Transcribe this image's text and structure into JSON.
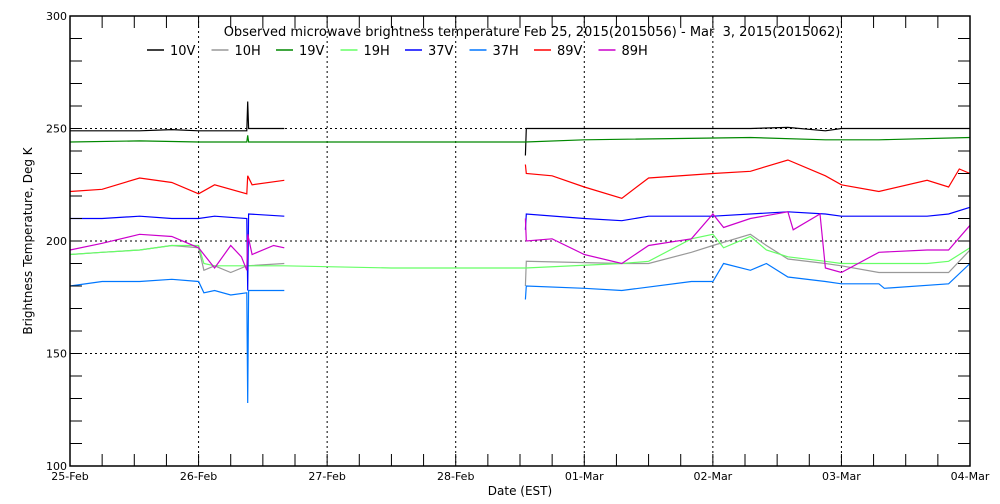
{
  "chart_data": {
    "type": "line",
    "title": "Observed microwave brightness temperature Feb 25, 2015(2015056) - Mar  3, 2015(2015062)",
    "xlabel": "Date (EST)",
    "ylabel": "Brightness Temperature, Deg K",
    "xlim": [
      "2015-02-25 00:00",
      "2015-03-04 00:00"
    ],
    "ylim": [
      100,
      300
    ],
    "x_tick_labels": [
      "25-Feb",
      "26-Feb",
      "27-Feb",
      "28-Feb",
      "01-Mar",
      "02-Mar",
      "03-Mar",
      "04-Mar"
    ],
    "y_tick_labels": [
      "100",
      "150",
      "200",
      "250",
      "300"
    ],
    "grid": "dotted",
    "legend": "top",
    "series": [
      {
        "name": "10V",
        "color": "#000000",
        "segments": [
          [
            [
              "2015-02-25 00:00",
              249
            ],
            [
              "2015-02-25 13:00",
              249
            ],
            [
              "2015-02-25 19:00",
              249.5
            ],
            [
              "2015-02-26 00:00",
              249
            ],
            [
              "2015-02-26 09:00",
              249
            ],
            [
              "2015-02-26 09:10",
              262
            ],
            [
              "2015-02-26 09:20",
              250
            ],
            [
              "2015-02-26 16:00",
              250
            ]
          ],
          [
            [
              "2015-02-28 13:00",
              238
            ],
            [
              "2015-02-28 13:10",
              250
            ],
            [
              "2015-03-01 00:00",
              250
            ],
            [
              "2015-03-02 07:00",
              250
            ],
            [
              "2015-03-02 14:00",
              250.5
            ],
            [
              "2015-03-02 21:00",
              249
            ],
            [
              "2015-03-03 00:00",
              250
            ],
            [
              "2015-03-04 00:00",
              250
            ]
          ]
        ]
      },
      {
        "name": "10H",
        "color": "#999999",
        "segments": [
          [
            [
              "2015-02-25 00:00",
              194
            ],
            [
              "2015-02-25 06:00",
              195
            ],
            [
              "2015-02-25 13:00",
              196
            ],
            [
              "2015-02-25 19:00",
              198
            ],
            [
              "2015-02-26 00:00",
              197
            ],
            [
              "2015-02-26 01:00",
              187
            ],
            [
              "2015-02-26 03:00",
              189
            ],
            [
              "2015-02-26 06:00",
              186
            ],
            [
              "2015-02-26 09:00",
              189
            ],
            [
              "2015-02-26 16:00",
              190
            ]
          ],
          [
            [
              "2015-02-28 13:00",
              180
            ],
            [
              "2015-02-28 13:10",
              191
            ],
            [
              "2015-03-01 07:00",
              190
            ],
            [
              "2015-03-01 12:00",
              190
            ],
            [
              "2015-03-01 20:00",
              195
            ],
            [
              "2015-03-02 00:00",
              198
            ],
            [
              "2015-03-02 07:00",
              203
            ],
            [
              "2015-03-02 10:00",
              198
            ],
            [
              "2015-03-02 14:00",
              192
            ],
            [
              "2015-03-02 21:00",
              190
            ],
            [
              "2015-03-03 00:00",
              189
            ],
            [
              "2015-03-03 07:00",
              186
            ],
            [
              "2015-03-03 20:00",
              186
            ],
            [
              "2015-03-04 00:00",
              196
            ]
          ]
        ]
      },
      {
        "name": "19V",
        "color": "#008800",
        "segments": [
          [
            [
              "2015-02-25 00:00",
              244
            ],
            [
              "2015-02-25 13:00",
              244.5
            ],
            [
              "2015-02-26 00:00",
              244
            ],
            [
              "2015-02-26 09:00",
              244
            ],
            [
              "2015-02-26 09:10",
              247
            ],
            [
              "2015-02-26 09:20",
              244
            ],
            [
              "2015-02-28 13:00",
              244
            ],
            [
              "2015-03-01 00:00",
              245
            ],
            [
              "2015-03-02 07:00",
              246
            ],
            [
              "2015-03-02 21:00",
              245
            ],
            [
              "2015-03-03 07:00",
              245
            ],
            [
              "2015-03-04 00:00",
              246
            ]
          ]
        ]
      },
      {
        "name": "19H",
        "color": "#66ff66",
        "segments": [
          [
            [
              "2015-02-25 00:00",
              194
            ],
            [
              "2015-02-25 06:00",
              195
            ],
            [
              "2015-02-25 13:00",
              196
            ],
            [
              "2015-02-25 19:00",
              198
            ],
            [
              "2015-02-26 00:00",
              198
            ],
            [
              "2015-02-26 01:00",
              190
            ],
            [
              "2015-02-26 03:00",
              189
            ],
            [
              "2015-02-26 16:00",
              189
            ],
            [
              "2015-02-27 12:00",
              188
            ],
            [
              "2015-02-28 13:00",
              188
            ],
            [
              "2015-03-01 07:00",
              190
            ],
            [
              "2015-03-01 12:00",
              191
            ],
            [
              "2015-03-01 20:00",
              201
            ],
            [
              "2015-03-02 00:00",
              203
            ],
            [
              "2015-03-02 02:00",
              197
            ],
            [
              "2015-03-02 07:00",
              202
            ],
            [
              "2015-03-02 10:00",
              196
            ],
            [
              "2015-03-02 14:00",
              193
            ],
            [
              "2015-03-02 21:00",
              191
            ],
            [
              "2015-03-03 00:00",
              190
            ],
            [
              "2015-03-03 16:00",
              190
            ],
            [
              "2015-03-03 20:00",
              191
            ],
            [
              "2015-03-04 00:00",
              197
            ]
          ]
        ]
      },
      {
        "name": "37V",
        "color": "#0000ff",
        "segments": [
          [
            [
              "2015-02-25 00:00",
              210
            ],
            [
              "2015-02-25 06:00",
              210
            ],
            [
              "2015-02-25 13:00",
              211
            ],
            [
              "2015-02-25 19:00",
              210
            ],
            [
              "2015-02-26 00:00",
              210
            ],
            [
              "2015-02-26 03:00",
              211
            ],
            [
              "2015-02-26 09:00",
              210
            ],
            [
              "2015-02-26 09:10",
              178
            ],
            [
              "2015-02-26 09:20",
              212
            ],
            [
              "2015-02-26 16:00",
              211
            ]
          ],
          [
            [
              "2015-02-28 13:00",
              205
            ],
            [
              "2015-02-28 13:10",
              212
            ],
            [
              "2015-03-01 00:00",
              210
            ],
            [
              "2015-03-01 07:00",
              209
            ],
            [
              "2015-03-01 12:00",
              211
            ],
            [
              "2015-03-02 00:00",
              211
            ],
            [
              "2015-03-02 14:00",
              213
            ],
            [
              "2015-03-02 21:00",
              212
            ],
            [
              "2015-03-03 00:00",
              211
            ],
            [
              "2015-03-03 16:00",
              211
            ],
            [
              "2015-03-03 20:00",
              212
            ],
            [
              "2015-03-04 00:00",
              215
            ]
          ]
        ]
      },
      {
        "name": "37H",
        "color": "#0077ff",
        "segments": [
          [
            [
              "2015-02-25 00:00",
              180
            ],
            [
              "2015-02-25 06:00",
              182
            ],
            [
              "2015-02-25 13:00",
              182
            ],
            [
              "2015-02-25 19:00",
              183
            ],
            [
              "2015-02-26 00:00",
              182
            ],
            [
              "2015-02-26 01:00",
              177
            ],
            [
              "2015-02-26 03:00",
              178
            ],
            [
              "2015-02-26 06:00",
              176
            ],
            [
              "2015-02-26 09:00",
              177
            ],
            [
              "2015-02-26 09:10",
              128
            ],
            [
              "2015-02-26 09:20",
              178
            ],
            [
              "2015-02-26 16:00",
              178
            ]
          ],
          [
            [
              "2015-02-28 13:00",
              174
            ],
            [
              "2015-02-28 13:10",
              180
            ],
            [
              "2015-03-01 00:00",
              179
            ],
            [
              "2015-03-01 07:00",
              178
            ],
            [
              "2015-03-01 20:00",
              182
            ],
            [
              "2015-03-02 00:00",
              182
            ],
            [
              "2015-03-02 02:00",
              190
            ],
            [
              "2015-03-02 07:00",
              187
            ],
            [
              "2015-03-02 10:00",
              190
            ],
            [
              "2015-03-02 14:00",
              184
            ],
            [
              "2015-03-02 21:00",
              182
            ],
            [
              "2015-03-03 00:00",
              181
            ],
            [
              "2015-03-03 07:00",
              181
            ],
            [
              "2015-03-03 08:00",
              179
            ],
            [
              "2015-03-03 20:00",
              181
            ],
            [
              "2015-03-04 00:00",
              190
            ]
          ]
        ]
      },
      {
        "name": "89V",
        "color": "#ff0000",
        "segments": [
          [
            [
              "2015-02-25 00:00",
              222
            ],
            [
              "2015-02-25 06:00",
              223
            ],
            [
              "2015-02-25 13:00",
              228
            ],
            [
              "2015-02-25 19:00",
              226
            ],
            [
              "2015-02-26 00:00",
              221
            ],
            [
              "2015-02-26 03:00",
              225
            ],
            [
              "2015-02-26 09:00",
              221
            ],
            [
              "2015-02-26 09:10",
              229
            ],
            [
              "2015-02-26 10:00",
              225
            ],
            [
              "2015-02-26 16:00",
              227
            ]
          ],
          [
            [
              "2015-02-28 13:00",
              234
            ],
            [
              "2015-02-28 13:10",
              230
            ],
            [
              "2015-02-28 18:00",
              229
            ],
            [
              "2015-03-01 00:00",
              224
            ],
            [
              "2015-03-01 07:00",
              219
            ],
            [
              "2015-03-01 12:00",
              228
            ],
            [
              "2015-03-02 00:00",
              230
            ],
            [
              "2015-03-02 07:00",
              231
            ],
            [
              "2015-03-02 14:00",
              236
            ],
            [
              "2015-03-02 21:00",
              229
            ],
            [
              "2015-03-03 00:00",
              225
            ],
            [
              "2015-03-03 07:00",
              222
            ],
            [
              "2015-03-03 16:00",
              227
            ],
            [
              "2015-03-03 20:00",
              224
            ],
            [
              "2015-03-03 22:00",
              232
            ],
            [
              "2015-03-04 00:00",
              230
            ]
          ]
        ]
      },
      {
        "name": "89H",
        "color": "#cc00cc",
        "segments": [
          [
            [
              "2015-02-25 00:00",
              196
            ],
            [
              "2015-02-25 06:00",
              199
            ],
            [
              "2015-02-25 13:00",
              203
            ],
            [
              "2015-02-25 19:00",
              202
            ],
            [
              "2015-02-26 00:00",
              197
            ],
            [
              "2015-02-26 03:00",
              188
            ],
            [
              "2015-02-26 06:00",
              198
            ],
            [
              "2015-02-26 08:00",
              193
            ],
            [
              "2015-02-26 09:00",
              187
            ],
            [
              "2015-02-26 09:10",
              203
            ],
            [
              "2015-02-26 10:00",
              194
            ],
            [
              "2015-02-26 14:00",
              198
            ],
            [
              "2015-02-26 16:00",
              197
            ]
          ],
          [
            [
              "2015-02-28 13:00",
              210
            ],
            [
              "2015-02-28 13:10",
              200
            ],
            [
              "2015-02-28 18:00",
              201
            ],
            [
              "2015-03-01 00:00",
              194
            ],
            [
              "2015-03-01 07:00",
              190
            ],
            [
              "2015-03-01 12:00",
              198
            ],
            [
              "2015-03-01 20:00",
              201
            ],
            [
              "2015-03-02 00:00",
              212
            ],
            [
              "2015-03-02 02:00",
              206
            ],
            [
              "2015-03-02 07:00",
              210
            ],
            [
              "2015-03-02 14:00",
              213
            ],
            [
              "2015-03-02 15:00",
              205
            ],
            [
              "2015-03-02 20:00",
              212
            ],
            [
              "2015-03-02 21:00",
              188
            ],
            [
              "2015-03-03 00:00",
              186
            ],
            [
              "2015-03-03 07:00",
              195
            ],
            [
              "2015-03-03 16:00",
              196
            ],
            [
              "2015-03-03 20:00",
              196
            ],
            [
              "2015-03-04 00:00",
              207
            ]
          ]
        ]
      }
    ]
  }
}
